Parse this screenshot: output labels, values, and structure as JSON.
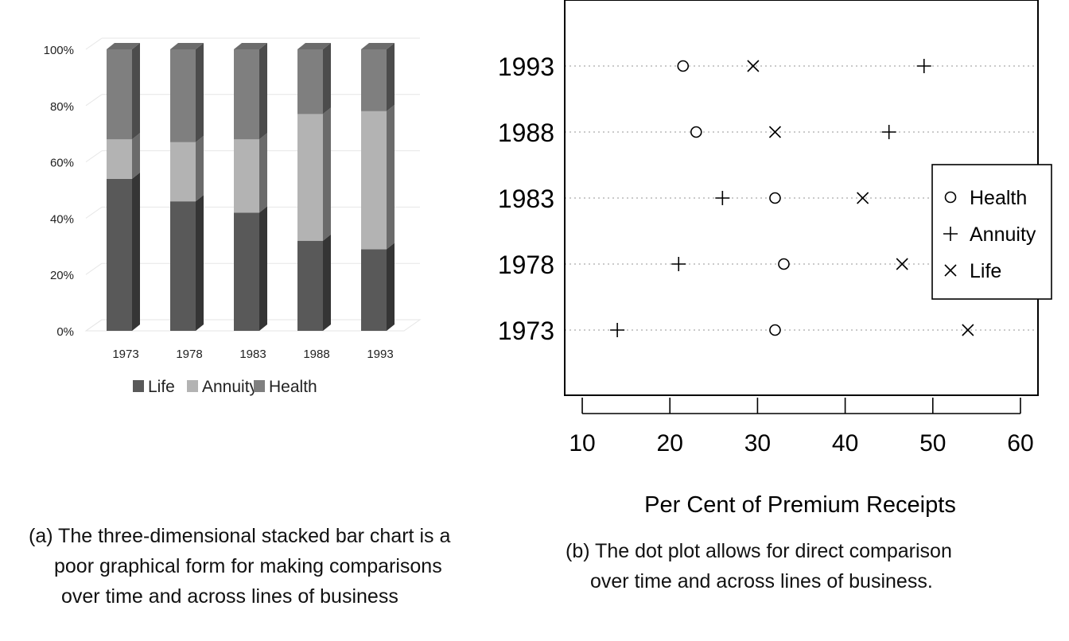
{
  "chart_data": [
    {
      "type": "bar",
      "subtype": "stacked-100-percent-3d",
      "categories": [
        "1973",
        "1978",
        "1983",
        "1988",
        "1993"
      ],
      "series": [
        {
          "name": "Life",
          "values": [
            54,
            46,
            42,
            32,
            29
          ],
          "color": "#595959"
        },
        {
          "name": "Annuity",
          "values": [
            14,
            21,
            26,
            45,
            49
          ],
          "color": "#b3b3b3"
        },
        {
          "name": "Health",
          "values": [
            32,
            33,
            32,
            23,
            22
          ],
          "color": "#7f7f7f"
        }
      ],
      "y_ticks": [
        "0%",
        "20%",
        "40%",
        "60%",
        "80%",
        "100%"
      ],
      "ylim": [
        0,
        100
      ],
      "grid": true,
      "legend_position": "bottom"
    },
    {
      "type": "scatter",
      "subtype": "dot-plot",
      "categories": [
        "1973",
        "1978",
        "1983",
        "1988",
        "1993"
      ],
      "series": [
        {
          "name": "Health",
          "marker": "circle",
          "values": [
            32,
            33,
            32,
            23,
            21.5
          ]
        },
        {
          "name": "Annuity",
          "marker": "plus",
          "values": [
            14,
            21,
            26,
            45,
            49
          ]
        },
        {
          "name": "Life",
          "marker": "cross",
          "values": [
            54,
            46.5,
            42,
            32,
            29.5
          ]
        }
      ],
      "xlabel": "Per Cent of Premium Receipts",
      "x_ticks": [
        "10",
        "20",
        "30",
        "40",
        "50",
        "60"
      ],
      "xlim": [
        8,
        62
      ],
      "grid": "dotted horizontal",
      "legend_position": "right"
    }
  ],
  "captions": {
    "a": [
      "(a) The three-dimensional stacked bar chart is a",
      "poor graphical form for making comparisons",
      "over time and across lines of business"
    ],
    "b": [
      "(b) The dot plot allows for direct comparison",
      "over time and across lines of business."
    ]
  }
}
